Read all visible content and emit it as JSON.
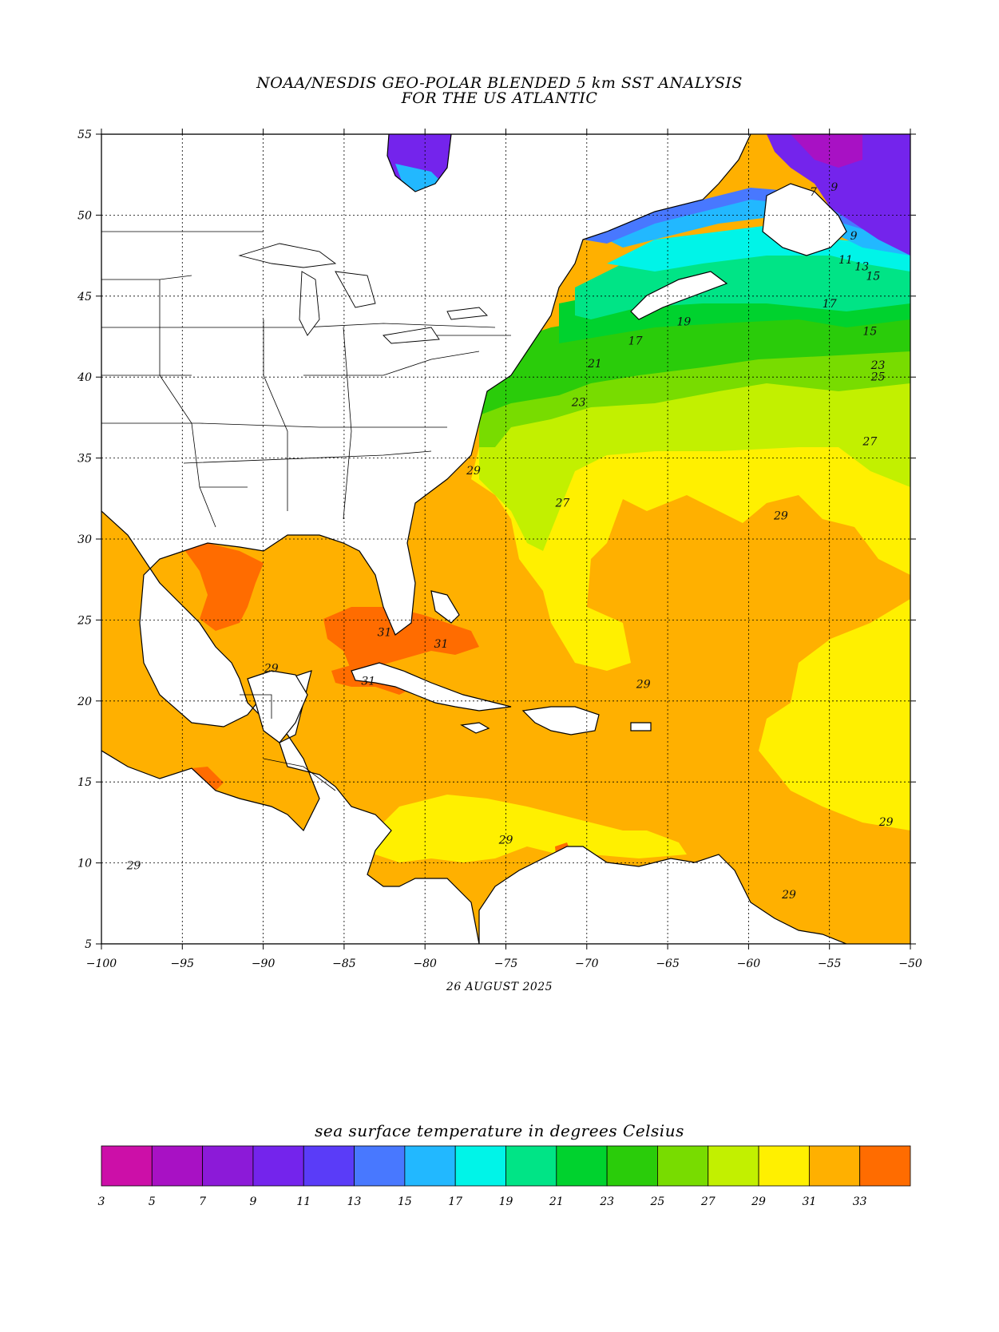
{
  "title": {
    "line1": "NOAA/NESDIS GEO-POLAR BLENDED 5 km SST ANALYSIS",
    "line2": "FOR THE US ATLANTIC"
  },
  "date": "26 AUGUST 2025",
  "colorbar": {
    "title": "sea surface temperature in degrees Celsius",
    "ticks": [
      "3",
      "5",
      "7",
      "9",
      "11",
      "13",
      "15",
      "17",
      "19",
      "21",
      "23",
      "25",
      "27",
      "29",
      "31",
      "33"
    ],
    "colors": [
      "#cc0fa8",
      "#a811c4",
      "#8c1ad8",
      "#7424ec",
      "#5a3cf8",
      "#4878ff",
      "#22b8ff",
      "#00f4e8",
      "#00e486",
      "#00d22e",
      "#2acc0a",
      "#78dc00",
      "#c2f000",
      "#fff000",
      "#ffb000",
      "#ff6c00"
    ]
  },
  "axes": {
    "lon_ticks": [
      "-100",
      "-95",
      "-90",
      "-85",
      "-80",
      "-75",
      "-70",
      "-65",
      "-60",
      "-55",
      "-50"
    ],
    "lat_ticks": [
      "55",
      "50",
      "45",
      "40",
      "35",
      "30",
      "25",
      "20",
      "15",
      "10",
      "5"
    ],
    "lon_range": [
      -100,
      -50
    ],
    "lat_range": [
      5,
      55
    ],
    "grid": "dotted"
  },
  "contour_labels": [
    {
      "text": "9",
      "lon": -54.7,
      "lat": 51.5
    },
    {
      "text": "7",
      "lon": -56.0,
      "lat": 51.2
    },
    {
      "text": "9",
      "lon": -53.5,
      "lat": 48.5
    },
    {
      "text": "11",
      "lon": -54.0,
      "lat": 47.0
    },
    {
      "text": "13",
      "lon": -53.0,
      "lat": 46.6
    },
    {
      "text": "15",
      "lon": -52.3,
      "lat": 46.0
    },
    {
      "text": "17",
      "lon": -55.0,
      "lat": 44.3
    },
    {
      "text": "19",
      "lon": -64.0,
      "lat": 43.2
    },
    {
      "text": "17",
      "lon": -67.0,
      "lat": 42.0
    },
    {
      "text": "15",
      "lon": -52.5,
      "lat": 42.6
    },
    {
      "text": "21",
      "lon": -69.5,
      "lat": 40.6
    },
    {
      "text": "23",
      "lon": -52.0,
      "lat": 40.5
    },
    {
      "text": "25",
      "lon": -52.0,
      "lat": 39.8
    },
    {
      "text": "23",
      "lon": -70.5,
      "lat": 38.2
    },
    {
      "text": "27",
      "lon": -52.5,
      "lat": 35.8
    },
    {
      "text": "29",
      "lon": -77.0,
      "lat": 34.0
    },
    {
      "text": "27",
      "lon": -71.5,
      "lat": 32.0
    },
    {
      "text": "29",
      "lon": -58.0,
      "lat": 31.2
    },
    {
      "text": "31",
      "lon": -82.5,
      "lat": 24.0
    },
    {
      "text": "31",
      "lon": -79.0,
      "lat": 23.3
    },
    {
      "text": "29",
      "lon": -89.5,
      "lat": 21.8
    },
    {
      "text": "31",
      "lon": -83.5,
      "lat": 21.0
    },
    {
      "text": "29",
      "lon": -66.5,
      "lat": 20.8
    },
    {
      "text": "29",
      "lon": -51.5,
      "lat": 12.3
    },
    {
      "text": "29",
      "lon": -75.0,
      "lat": 11.2
    },
    {
      "text": "29",
      "lon": -98.0,
      "lat": 9.6
    },
    {
      "text": "29",
      "lon": -57.5,
      "lat": 7.8
    }
  ]
}
